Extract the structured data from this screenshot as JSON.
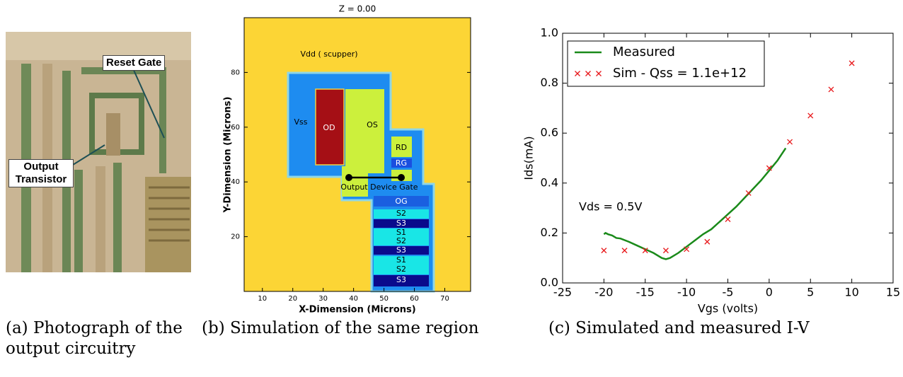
{
  "figure_a": {
    "reset_gate": "Reset Gate",
    "output_transistor": "Output Transistor",
    "caption": "(a) Photograph of the output circuitry"
  },
  "figure_b": {
    "title": "Z = 0.00",
    "xlabel": "X-Dimension (Microns)",
    "ylabel": "Y-Dimension (Microns)",
    "xlim": [
      4,
      78.5
    ],
    "ylim": [
      0,
      100
    ],
    "xticks": [
      10,
      20,
      30,
      40,
      50,
      60,
      70
    ],
    "yticks": [
      20,
      40,
      60,
      80
    ],
    "regions": [
      "Vdd ( scupper)",
      "Vss",
      "OD",
      "OS",
      "RD",
      "RG",
      "Output Device Gate",
      "OG",
      "S2",
      "S3",
      "S1",
      "S2",
      "S3",
      "S1",
      "S2",
      "S3"
    ],
    "caption": "(b) Simulation of the same region"
  },
  "chart_data": {
    "type": "line",
    "xlabel": "Vgs (volts)",
    "ylabel": "Ids(mA)",
    "xlim": [
      -25,
      15
    ],
    "ylim": [
      0,
      1
    ],
    "xticks": [
      -25,
      -20,
      -15,
      -10,
      -5,
      0,
      5,
      10,
      15
    ],
    "yticks": [
      {
        "value": 0,
        "label": "0.0"
      },
      0.2,
      0.4,
      0.6,
      0.8,
      {
        "value": 1,
        "label": "1.0"
      }
    ],
    "annotation": "Vds = 0.5V",
    "series": [
      {
        "name": "Measured",
        "color": "#1a8a1a",
        "style": "line",
        "x": [
          -20,
          -19.8,
          -19.5,
          -19,
          -18.5,
          -18,
          -17,
          -16,
          -15,
          -14,
          -13,
          -12.5,
          -12,
          -11,
          -10,
          -9,
          -8,
          -7,
          -6,
          -5,
          -4,
          -3,
          -2,
          -1,
          0,
          1,
          2
        ],
        "values": [
          0.195,
          0.2,
          0.195,
          0.19,
          0.18,
          0.178,
          0.165,
          0.15,
          0.135,
          0.12,
          0.1,
          0.095,
          0.1,
          0.12,
          0.145,
          0.17,
          0.195,
          0.215,
          0.245,
          0.275,
          0.305,
          0.34,
          0.375,
          0.41,
          0.45,
          0.49,
          0.54
        ]
      },
      {
        "name": "Sim - Qss = 1.1e+12",
        "color": "#e8191c",
        "style": "marker",
        "x": [
          -20,
          -17.5,
          -15,
          -12.5,
          -10,
          -7.5,
          -5,
          -2.5,
          0,
          2.5,
          5,
          7.5,
          10
        ],
        "values": [
          0.13,
          0.13,
          0.13,
          0.13,
          0.135,
          0.165,
          0.255,
          0.36,
          0.46,
          0.565,
          0.67,
          0.775,
          0.88
        ]
      }
    ],
    "caption": "(c) Simulated and measured I-V"
  }
}
